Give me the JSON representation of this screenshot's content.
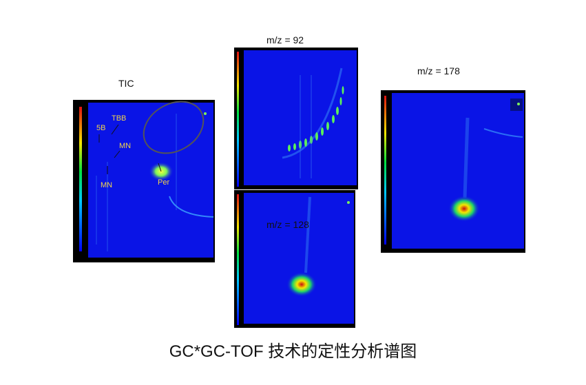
{
  "caption": "GC*GC-TOF 技术的定性分析谱图",
  "colors": {
    "plot_background": "#0a14e6",
    "frame": "#000000",
    "hotspot_center": "#c81010",
    "hotspot_mid": "#f5e600",
    "hotspot_outer": "#1ed26a",
    "annotation_text": "#f2d44b"
  },
  "chart_data": [
    {
      "type": "heatmap",
      "panel": "tic",
      "title": "TIC",
      "annotations": [
        "TBB",
        "5B",
        "MN",
        "MN",
        "Per"
      ],
      "features": [
        "circled region",
        "bright spot",
        "vertical streaks"
      ]
    },
    {
      "type": "heatmap",
      "panel": "mz92",
      "title": "m/z = 92",
      "features": [
        "diagonal series of spots rising to the right"
      ]
    },
    {
      "type": "heatmap",
      "panel": "mz128",
      "title": "m/z = 128",
      "features": [
        "single bright spot"
      ]
    },
    {
      "type": "heatmap",
      "panel": "mz178",
      "title": "m/z = 178",
      "features": [
        "single bright spot"
      ]
    }
  ]
}
